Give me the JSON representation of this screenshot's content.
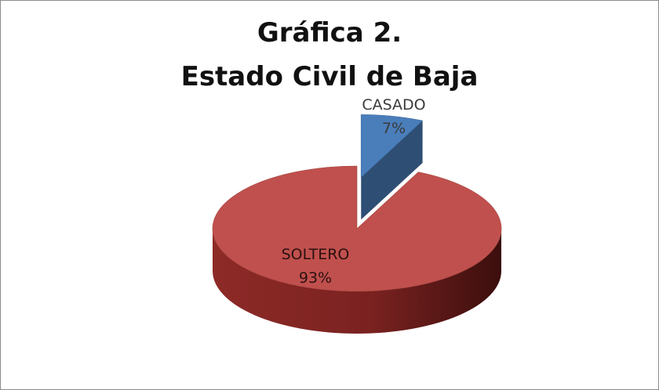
{
  "title_line1": "Gráfica 2.",
  "title_line2": "Estado Civil de Baja",
  "chart_data": {
    "type": "pie",
    "title": "Gráfica 2. Estado Civil de Baja",
    "slices": [
      {
        "label": "CASADO",
        "percent_label": "7%",
        "value": 7,
        "color": "#4a7ebb",
        "exploded": true
      },
      {
        "label": "SOLTERO",
        "percent_label": "93%",
        "value": 93,
        "color": "#c0504d",
        "exploded": false
      }
    ],
    "style": "3d-exploded"
  }
}
